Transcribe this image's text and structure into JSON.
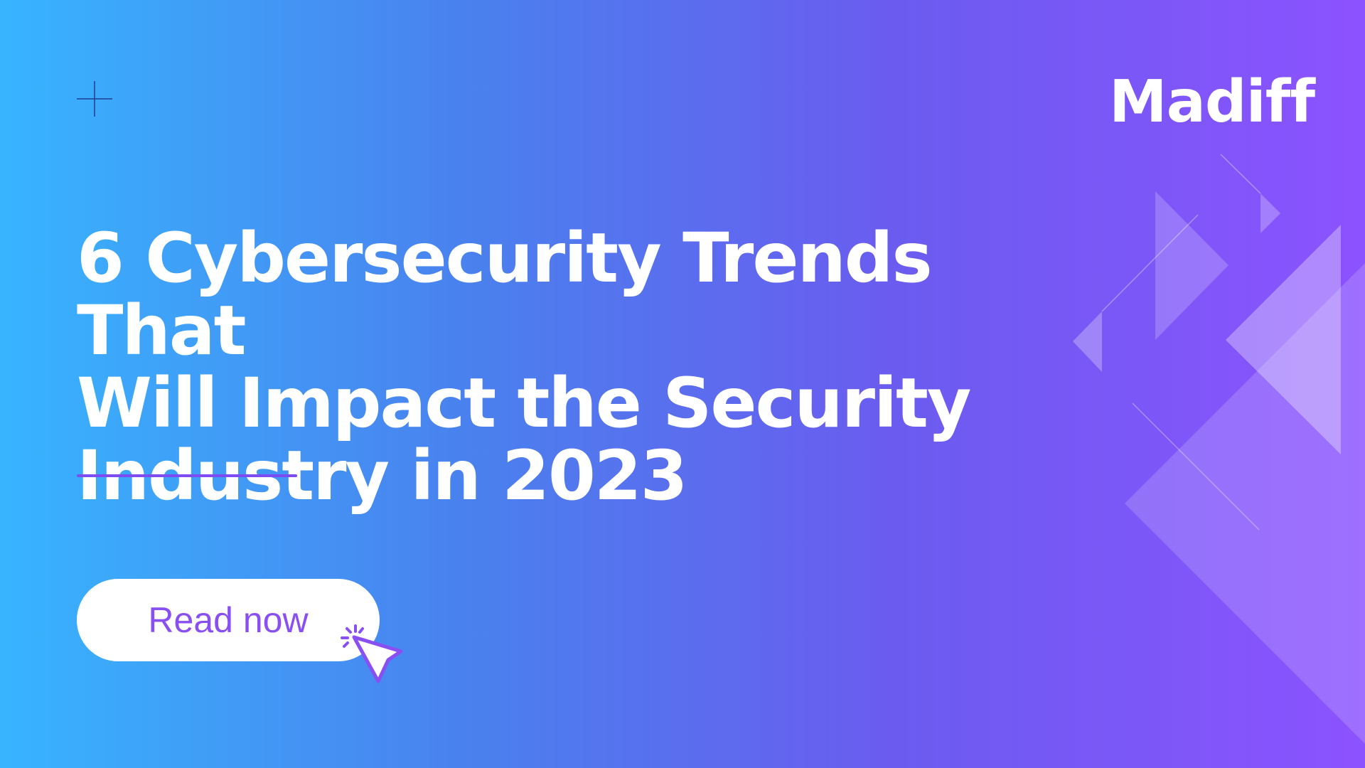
{
  "brand": {
    "logo": "Madiff"
  },
  "headline": {
    "lines": [
      "6 Cybersecurity Trends That",
      "Will Impact the Security",
      "Industry in 2023"
    ]
  },
  "cta": {
    "label": "Read now"
  },
  "icons": {
    "corner": "plus-icon",
    "cta": "cursor-click-icon"
  },
  "colors": {
    "gradient_start": "#38b4fe",
    "gradient_end": "#8c52ff",
    "accent": "#8a4ff2",
    "text": "#ffffff"
  }
}
